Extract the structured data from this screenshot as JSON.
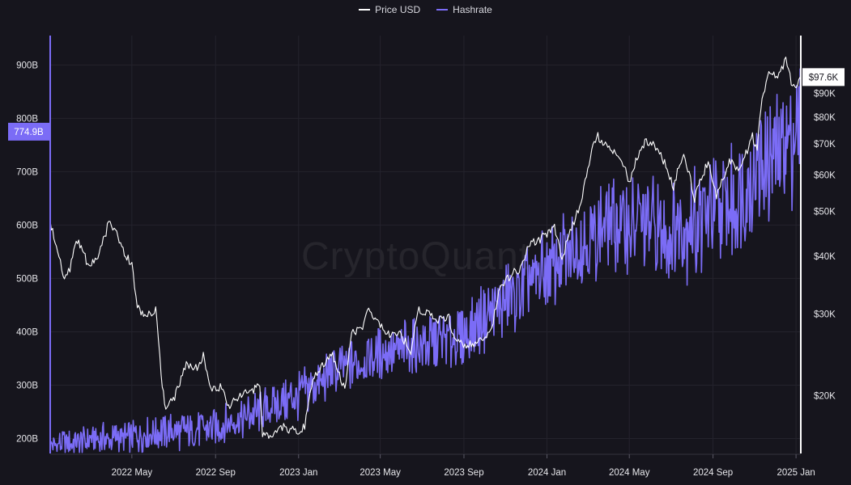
{
  "chart_data": {
    "type": "line",
    "watermark": "CryptoQuant",
    "legend": {
      "placement": "top-center",
      "items": [
        {
          "label": "Price USD",
          "color": "#ffffff"
        },
        {
          "label": "Hashrate",
          "color": "#7b6cf6"
        }
      ]
    },
    "colors": {
      "background": "#16151d",
      "price": "#ffffff",
      "hashrate": "#7b6cf6",
      "grid": "#24232d"
    },
    "x_ticks": [
      "2022 May",
      "2022 Sep",
      "2023 Jan",
      "2023 May",
      "2023 Sep",
      "2024 Jan",
      "2024 May",
      "2024 Sep",
      "2025 Jan"
    ],
    "x_range": [
      "2022-01-01",
      "2025-01-08"
    ],
    "left_axis": {
      "ticks": [
        "200B",
        "300B",
        "400B",
        "500B",
        "600B",
        "700B",
        "800B",
        "900B"
      ],
      "values": [
        200,
        300,
        400,
        500,
        600,
        700,
        800,
        900
      ],
      "range": [
        172,
        955
      ],
      "current_label": "774.9B",
      "current_value": 774.9
    },
    "right_axis": {
      "scale": "log",
      "ticks": [
        "$20K",
        "$30K",
        "$40K",
        "$50K",
        "$60K",
        "$70K",
        "$80K",
        "$90K"
      ],
      "values": [
        20000,
        30000,
        40000,
        50000,
        60000,
        70000,
        80000,
        90000
      ],
      "range": [
        15000,
        120000
      ],
      "current_label": "$97.6K",
      "current_value": 97600
    },
    "grid": true,
    "series": [
      {
        "name": "Price USD",
        "axis": "right",
        "points": [
          [
            "2022-01-01",
            47000
          ],
          [
            "2022-01-10",
            42000
          ],
          [
            "2022-01-22",
            35000
          ],
          [
            "2022-02-01",
            38500
          ],
          [
            "2022-02-10",
            43500
          ],
          [
            "2022-02-25",
            38500
          ],
          [
            "2022-03-10",
            39000
          ],
          [
            "2022-03-28",
            47000
          ],
          [
            "2022-04-05",
            45500
          ],
          [
            "2022-04-20",
            41000
          ],
          [
            "2022-05-01",
            38000
          ],
          [
            "2022-05-09",
            31000
          ],
          [
            "2022-05-20",
            29500
          ],
          [
            "2022-06-05",
            30500
          ],
          [
            "2022-06-13",
            22500
          ],
          [
            "2022-06-18",
            19000
          ],
          [
            "2022-07-01",
            19500
          ],
          [
            "2022-07-20",
            23500
          ],
          [
            "2022-08-05",
            23000
          ],
          [
            "2022-08-14",
            24300
          ],
          [
            "2022-08-25",
            20500
          ],
          [
            "2022-09-10",
            21000
          ],
          [
            "2022-09-20",
            19000
          ],
          [
            "2022-10-05",
            20000
          ],
          [
            "2022-10-25",
            20500
          ],
          [
            "2022-11-05",
            21000
          ],
          [
            "2022-11-09",
            16500
          ],
          [
            "2022-11-20",
            16200
          ],
          [
            "2022-12-10",
            17200
          ],
          [
            "2022-12-31",
            16600
          ],
          [
            "2023-01-10",
            17300
          ],
          [
            "2023-01-20",
            21000
          ],
          [
            "2023-02-01",
            23000
          ],
          [
            "2023-02-20",
            24500
          ],
          [
            "2023-03-10",
            20500
          ],
          [
            "2023-03-20",
            27500
          ],
          [
            "2023-04-05",
            28000
          ],
          [
            "2023-04-14",
            30500
          ],
          [
            "2023-05-01",
            28500
          ],
          [
            "2023-05-15",
            27000
          ],
          [
            "2023-06-01",
            27000
          ],
          [
            "2023-06-15",
            25000
          ],
          [
            "2023-06-25",
            30500
          ],
          [
            "2023-07-10",
            30200
          ],
          [
            "2023-07-25",
            29200
          ],
          [
            "2023-08-10",
            29500
          ],
          [
            "2023-08-18",
            26200
          ],
          [
            "2023-09-10",
            25800
          ],
          [
            "2023-09-25",
            26300
          ],
          [
            "2023-10-10",
            27200
          ],
          [
            "2023-10-24",
            34000
          ],
          [
            "2023-11-10",
            36800
          ],
          [
            "2023-11-25",
            37800
          ],
          [
            "2023-12-05",
            42500
          ],
          [
            "2023-12-20",
            43500
          ],
          [
            "2024-01-01",
            44500
          ],
          [
            "2024-01-12",
            46500
          ],
          [
            "2024-01-23",
            39500
          ],
          [
            "2024-02-10",
            47500
          ],
          [
            "2024-02-20",
            52000
          ],
          [
            "2024-03-05",
            66000
          ],
          [
            "2024-03-14",
            73000
          ],
          [
            "2024-03-25",
            70000
          ],
          [
            "2024-04-05",
            68000
          ],
          [
            "2024-04-20",
            64500
          ],
          [
            "2024-05-01",
            58000
          ],
          [
            "2024-05-20",
            70000
          ],
          [
            "2024-06-05",
            71000
          ],
          [
            "2024-06-20",
            64500
          ],
          [
            "2024-07-05",
            56500
          ],
          [
            "2024-07-20",
            67500
          ],
          [
            "2024-08-05",
            53500
          ],
          [
            "2024-08-25",
            64000
          ],
          [
            "2024-09-06",
            53500
          ],
          [
            "2024-09-25",
            64500
          ],
          [
            "2024-10-10",
            60500
          ],
          [
            "2024-10-29",
            72500
          ],
          [
            "2024-11-05",
            68500
          ],
          [
            "2024-11-12",
            88000
          ],
          [
            "2024-11-22",
            99000
          ],
          [
            "2024-12-05",
            97500
          ],
          [
            "2024-12-17",
            106000
          ],
          [
            "2024-12-25",
            95500
          ],
          [
            "2025-01-01",
            94000
          ],
          [
            "2025-01-07",
            97600
          ]
        ]
      },
      {
        "name": "Hashrate",
        "axis": "left",
        "trend": [
          [
            "2022-01-01",
            190
          ],
          [
            "2022-05-01",
            205
          ],
          [
            "2022-09-01",
            220
          ],
          [
            "2022-11-15",
            255
          ],
          [
            "2023-01-01",
            280
          ],
          [
            "2023-03-01",
            330
          ],
          [
            "2023-05-01",
            360
          ],
          [
            "2023-07-01",
            375
          ],
          [
            "2023-09-01",
            390
          ],
          [
            "2023-10-15",
            440
          ],
          [
            "2023-12-01",
            480
          ],
          [
            "2024-01-01",
            515
          ],
          [
            "2024-02-15",
            560
          ],
          [
            "2024-04-01",
            605
          ],
          [
            "2024-05-15",
            600
          ],
          [
            "2024-07-01",
            585
          ],
          [
            "2024-08-15",
            610
          ],
          [
            "2024-10-01",
            640
          ],
          [
            "2024-11-15",
            720
          ],
          [
            "2025-01-07",
            775
          ]
        ],
        "amplitude": [
          [
            "2022-01-01",
            22
          ],
          [
            "2022-11-01",
            35
          ],
          [
            "2023-06-01",
            45
          ],
          [
            "2023-11-01",
            60
          ],
          [
            "2024-06-01",
            80
          ],
          [
            "2025-01-07",
            110
          ]
        ]
      }
    ]
  }
}
